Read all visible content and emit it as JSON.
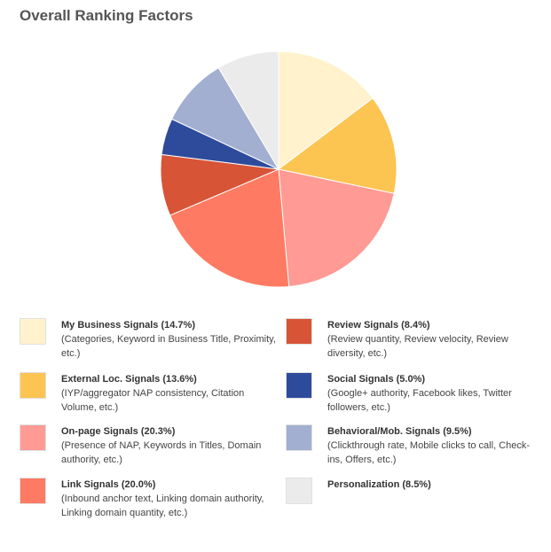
{
  "chart_data": {
    "type": "pie",
    "title": "Overall Ranking Factors",
    "slices": [
      {
        "name": "My Business Signals (14.7%)",
        "description": "(Categories, Keyword in Business Title, Proximity, etc.)",
        "value": 14.7,
        "color": "#fff2cc"
      },
      {
        "name": "External Loc. Signals (13.6%)",
        "description": "(IYP/aggregator NAP consistency, Citation Volume, etc.)",
        "value": 13.6,
        "color": "#fcc451"
      },
      {
        "name": "On-page Signals (20.3%)",
        "description": "(Presence of NAP, Keywords in Titles, Domain authority, etc.)",
        "value": 20.3,
        "color": "#ff9a94"
      },
      {
        "name": "Link Signals (20.0%)",
        "description": "(Inbound anchor text, Linking domain authority, Linking domain quantity, etc.)",
        "value": 20.0,
        "color": "#ff7a62"
      },
      {
        "name": "Review Signals (8.4%)",
        "description": "(Review quantity, Review velocity, Review diversity, etc.)",
        "value": 8.4,
        "color": "#d75437"
      },
      {
        "name": "Social Signals (5.0%)",
        "description": "(Google+ authority, Facebook likes, Twitter followers, etc.)",
        "value": 5.0,
        "color": "#2e4b9b"
      },
      {
        "name": "Behavioral/Mob. Signals (9.5%)",
        "description": "(Clickthrough rate, Mobile clicks to call, Check-ins, Offers, etc.)",
        "value": 9.5,
        "color": "#a2afd0"
      },
      {
        "name": "Personalization (8.5%)",
        "description": "",
        "value": 8.5,
        "color": "#ebebeb"
      }
    ],
    "legend_placement": "bottom"
  }
}
